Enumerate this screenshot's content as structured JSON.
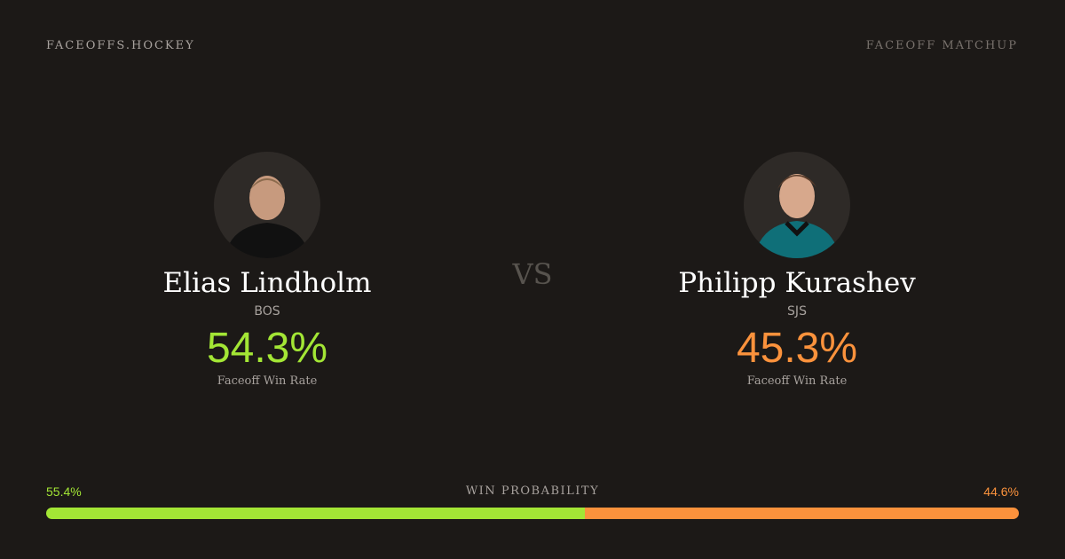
{
  "header": {
    "brand": "FACEOFFS.HOCKEY",
    "label": "FACEOFF MATCHUP"
  },
  "players": [
    {
      "name": "Elias Lindholm",
      "team": "BOS",
      "rate": "54.3%",
      "rate_label": "Faceoff Win Rate"
    },
    {
      "name": "Philipp Kurashev",
      "team": "SJS",
      "rate": "45.3%",
      "rate_label": "Faceoff Win Rate"
    }
  ],
  "vs": "VS",
  "win_probability": {
    "label": "WIN PROBABILITY",
    "values": [
      55.4,
      44.6
    ],
    "value_labels": [
      "55.4%",
      "44.6%"
    ]
  }
}
